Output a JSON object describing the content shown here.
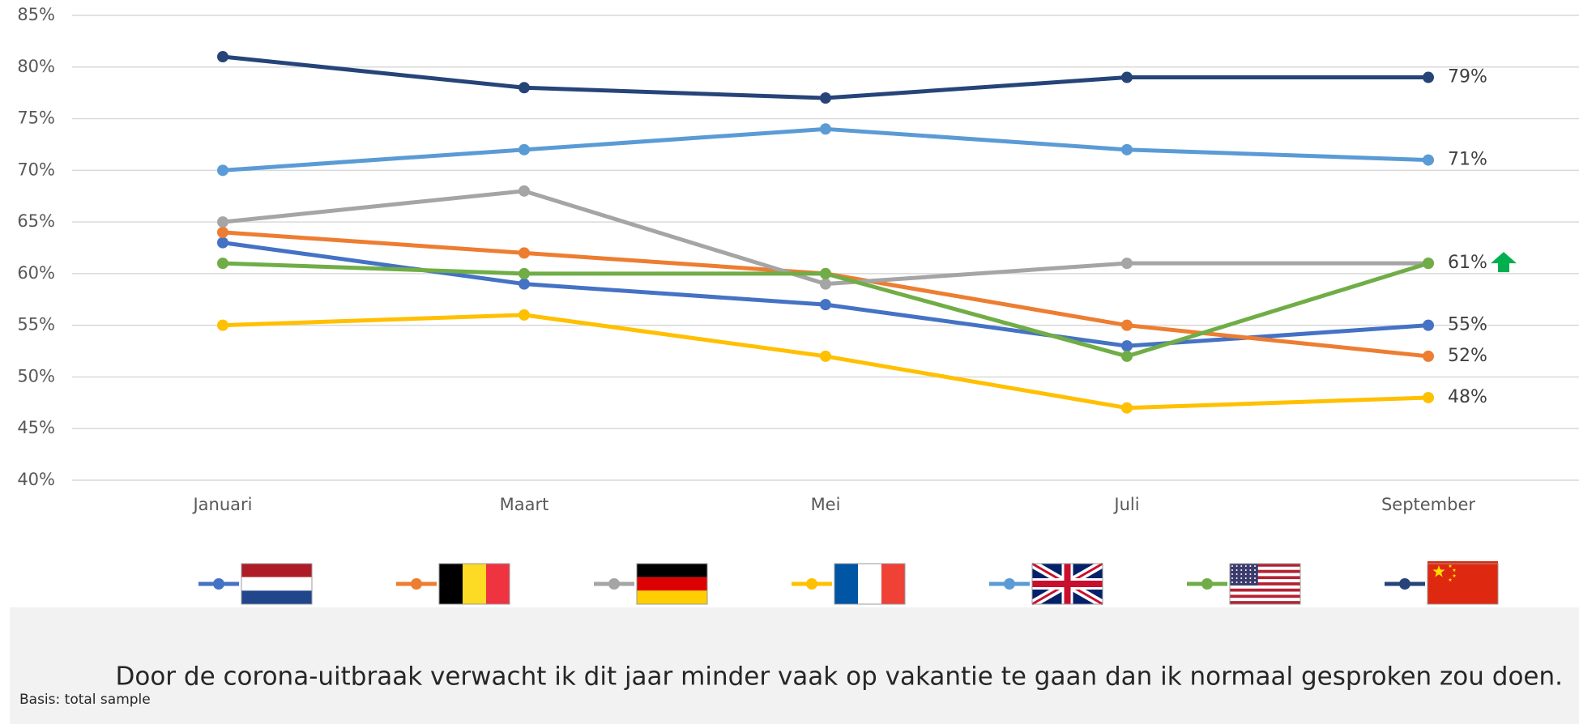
{
  "chart_data": {
    "type": "line",
    "categories": [
      "Januari",
      "Maart",
      "Mei",
      "Juli",
      "September"
    ],
    "series": [
      {
        "color": "#4472c4",
        "values": [
          63,
          59,
          57,
          53,
          55
        ],
        "value_labels": [
          null,
          null,
          null,
          null,
          "55%"
        ]
      },
      {
        "color": "#ed7d31",
        "values": [
          64,
          62,
          60,
          55,
          52
        ],
        "value_labels": [
          null,
          null,
          null,
          null,
          "52%"
        ]
      },
      {
        "color": "#a5a5a5",
        "values": [
          65,
          68,
          59,
          61,
          61
        ]
      },
      {
        "color": "#ffc000",
        "values": [
          55,
          56,
          52,
          47,
          48
        ],
        "value_labels": [
          null,
          null,
          null,
          null,
          "48%"
        ]
      },
      {
        "color": "#5b9bd5",
        "values": [
          70,
          72,
          74,
          72,
          71
        ],
        "value_labels": [
          null,
          null,
          null,
          null,
          "71%"
        ]
      },
      {
        "color": "#70ad47",
        "values": [
          61,
          60,
          60,
          52,
          61
        ],
        "value_labels": [
          null,
          null,
          null,
          null,
          "61%"
        ]
      },
      {
        "color": "#264478",
        "values": [
          81,
          78,
          77,
          79,
          79
        ],
        "value_labels": [
          null,
          null,
          null,
          null,
          "79%"
        ]
      }
    ],
    "ylim": [
      40,
      85
    ],
    "yticks": [
      {
        "value": 40,
        "label": "40%"
      },
      {
        "value": 45,
        "label": "45%"
      },
      {
        "value": 50,
        "label": "50%"
      },
      {
        "value": 55,
        "label": "55%"
      },
      {
        "value": 60,
        "label": "60%"
      },
      {
        "value": 65,
        "label": "65%"
      },
      {
        "value": 70,
        "label": "70%"
      },
      {
        "value": 75,
        "label": "75%"
      },
      {
        "value": 80,
        "label": "80%"
      },
      {
        "value": 85,
        "label": "85%"
      }
    ],
    "grid": true,
    "caption": "Door de corona-uitbraak verwacht ik dit jaar minder vaak op vakantie te gaan dan ik normaal gesproken zou doen.",
    "footnote": "Basis: total sample"
  }
}
